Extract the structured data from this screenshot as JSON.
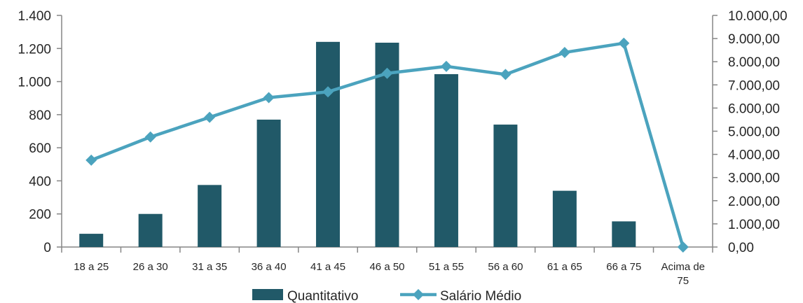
{
  "chart_data": {
    "type": "bar",
    "categories": [
      "18 a 25",
      "26 a 30",
      "31 a 35",
      "36 a 40",
      "41 a 45",
      "46 a 50",
      "51 a 55",
      "56 a 60",
      "61 a 65",
      "66 a 75",
      "Acima de 75"
    ],
    "series": [
      {
        "name": "Quantitativo",
        "type": "bar",
        "axis": "left",
        "color": "#215968",
        "values": [
          80,
          200,
          375,
          770,
          1240,
          1235,
          1045,
          740,
          340,
          155,
          0
        ]
      },
      {
        "name": "Salário Médio",
        "type": "line",
        "axis": "right",
        "marker": "diamond",
        "color": "#4BA3BE",
        "values": [
          3750,
          4750,
          5600,
          6450,
          6700,
          7500,
          7800,
          7450,
          8400,
          8800,
          0
        ]
      }
    ],
    "y_left": {
      "lim": [
        0,
        1400
      ],
      "ticks": [
        0,
        200,
        400,
        600,
        800,
        1000,
        1200,
        1400
      ],
      "tick_labels": [
        "0",
        "200",
        "400",
        "600",
        "800",
        "1.000",
        "1.200",
        "1.400"
      ]
    },
    "y_right": {
      "lim": [
        0,
        10000
      ],
      "ticks": [
        0,
        1000,
        2000,
        3000,
        4000,
        5000,
        6000,
        7000,
        8000,
        9000,
        10000
      ],
      "tick_labels": [
        "0,00",
        "1.000,00",
        "2.000,00",
        "3.000,00",
        "4.000,00",
        "5.000,00",
        "6.000,00",
        "7.000,00",
        "8.000,00",
        "9.000,00",
        "10.000,00"
      ]
    },
    "category_lines": [
      [
        "18 a 25"
      ],
      [
        "26 a 30"
      ],
      [
        "31 a 35"
      ],
      [
        "36 a 40"
      ],
      [
        "41 a 45"
      ],
      [
        "46 a 50"
      ],
      [
        "51 a 55"
      ],
      [
        "56 a 60"
      ],
      [
        "61 a 65"
      ],
      [
        "66 a 75"
      ],
      [
        "Acima de",
        "75"
      ]
    ],
    "grid": false,
    "legend": {
      "position": "bottom",
      "entries": [
        "Quantitativo",
        "Salário Médio"
      ]
    },
    "axis_color": "#868686"
  }
}
